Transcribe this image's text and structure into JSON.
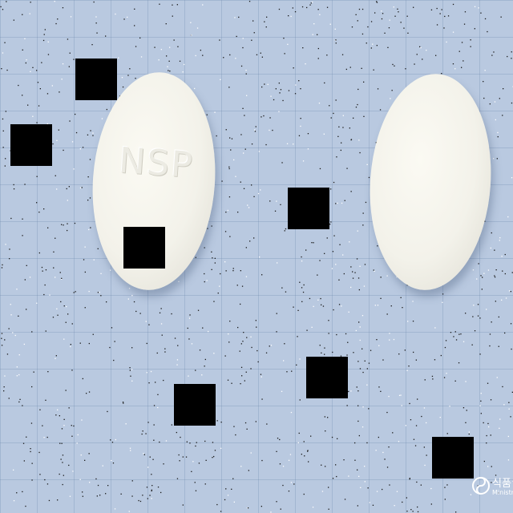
{
  "photo": {
    "background_color": "#b9c9e0",
    "grid_line_color": "#7891b4",
    "pill_color": "#f3f2ea"
  },
  "pills": [
    {
      "imprint": "NSP",
      "shape": "oval"
    },
    {
      "imprint": "",
      "shape": "oval"
    }
  ],
  "logo": {
    "icon": "taegeuk-emblem-icon",
    "text": "식품",
    "subtext": "Ministr"
  }
}
